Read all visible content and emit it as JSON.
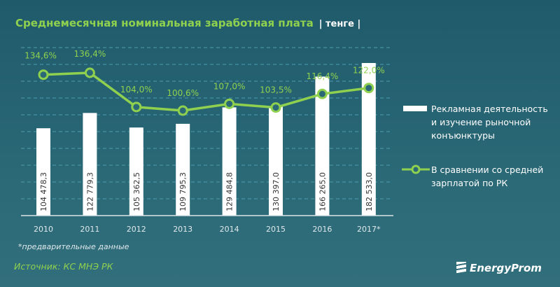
{
  "chart_data": {
    "type": "bar+line",
    "title": "Среднемесячная номинальная заработная плата",
    "unit": "| тенге |",
    "categories": [
      "2010",
      "2011",
      "2012",
      "2013",
      "2014",
      "2015",
      "2016",
      "2017*"
    ],
    "series": [
      {
        "name": "Рекламная деятельность и изучение рыночной конъюнктуры",
        "type": "bar",
        "values": [
          104478.3,
          122779.3,
          105362.5,
          109795.3,
          129484.8,
          130397.0,
          166265.0,
          182533.0
        ],
        "labels": [
          "104 478,3",
          "122 779,3",
          "105 362,5",
          "109 795,3",
          "129 484,8",
          "130 397,0",
          "166 265,0",
          "182 533,0"
        ],
        "color": "#ffffff"
      },
      {
        "name": "В сравнении со средней зарплатой по РК",
        "type": "line",
        "values": [
          134.6,
          136.4,
          104.0,
          100.6,
          107.0,
          103.5,
          116.4,
          122.0
        ],
        "labels": [
          "134,6%",
          "136,4%",
          "104,0%",
          "100,6%",
          "107,0%",
          "103,5%",
          "116,4%",
          "122,0%"
        ],
        "color": "#8fd14f"
      }
    ],
    "grid": true,
    "legend": "right"
  },
  "legend": {
    "bar_line1": "Рекламная деятельность",
    "bar_line2": "и изучение рыночной",
    "bar_line3": "конъюнктуры",
    "line_line1": "В сравнении со средней",
    "line_line2": "зарплатой по РК"
  },
  "footnote": "*предварительные данные",
  "source": "Источник: КС МНЭ РК",
  "logo": "EnergyProm"
}
